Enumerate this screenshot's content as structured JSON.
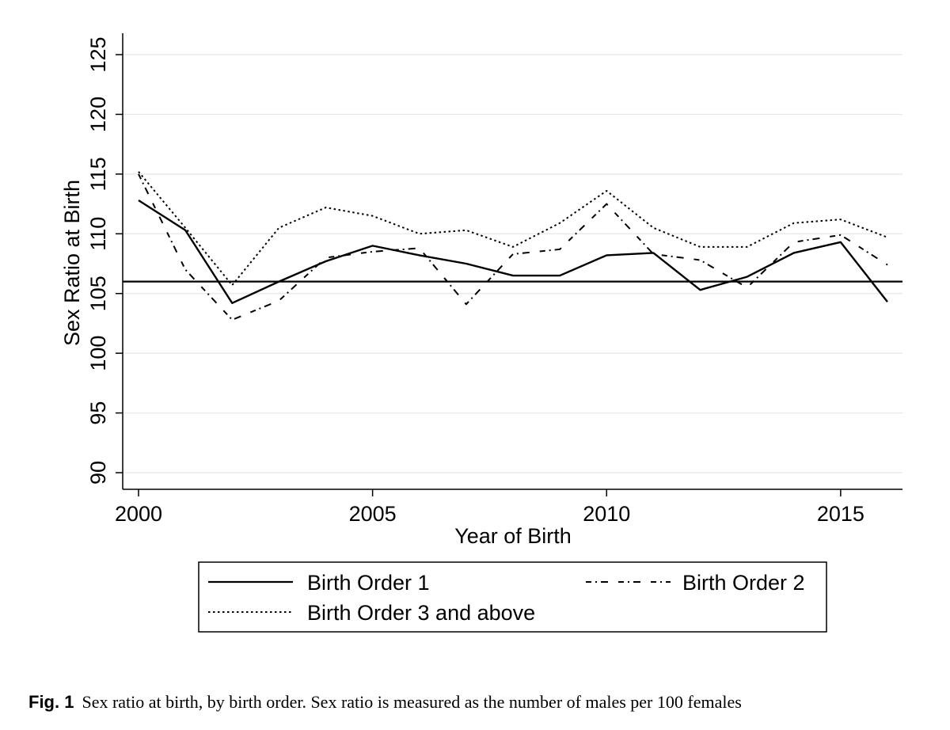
{
  "chart_data": {
    "type": "line",
    "xlabel": "Year of Birth",
    "ylabel": "Sex Ratio at Birth",
    "xlim": [
      2000,
      2016
    ],
    "ylim": [
      90,
      125
    ],
    "xticks": [
      "2000",
      "2005",
      "2010",
      "2015"
    ],
    "yticks": [
      "90",
      "95",
      "100",
      "105",
      "110",
      "115",
      "120",
      "125"
    ],
    "grid": true,
    "reference_line": 106,
    "x": [
      2000,
      2001,
      2002,
      2003,
      2004,
      2005,
      2006,
      2007,
      2008,
      2009,
      2010,
      2011,
      2012,
      2013,
      2014,
      2015,
      2016
    ],
    "series": [
      {
        "name": "Birth Order 1",
        "style": "solid",
        "values": [
          112.8,
          110.3,
          104.2,
          106.0,
          107.7,
          109.0,
          108.2,
          107.5,
          106.5,
          106.5,
          108.2,
          108.4,
          105.3,
          106.4,
          108.4,
          109.3,
          104.3
        ]
      },
      {
        "name": "Birth Order 2",
        "style": "dash-dot",
        "values": [
          115.0,
          107.0,
          102.8,
          104.4,
          108.0,
          108.5,
          108.8,
          104.1,
          108.3,
          108.7,
          112.5,
          108.3,
          107.8,
          105.5,
          109.3,
          109.9,
          107.4
        ]
      },
      {
        "name": "Birth Order 3 and above",
        "style": "dotted",
        "values": [
          115.2,
          110.5,
          105.7,
          110.5,
          112.2,
          111.5,
          110.0,
          110.3,
          108.9,
          110.9,
          113.6,
          110.5,
          108.9,
          108.9,
          110.9,
          111.2,
          109.7
        ]
      }
    ],
    "legend_position": "bottom"
  },
  "caption": {
    "label": "Fig. 1",
    "text": "Sex ratio at birth, by birth order. Sex ratio is measured as the number of males per 100 females"
  }
}
